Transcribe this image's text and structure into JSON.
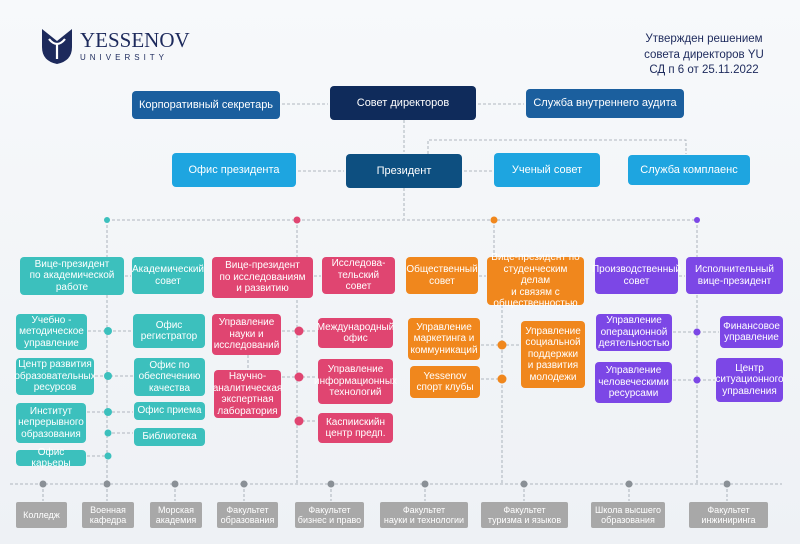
{
  "header": {
    "logo": {
      "name": "YESSENOV",
      "sub": "UNIVERSITY"
    },
    "approval": [
      "Утвержден решением",
      "совета директоров YU",
      "СД п 6 от 25.11.2022"
    ]
  },
  "colors": {
    "teal": "#3cc0bd",
    "pink": "#e04571",
    "orange": "#f08a1d",
    "purple": "#7c47e6",
    "navy": "#0f2b5b",
    "gray": "#a8a8a8"
  },
  "top": {
    "corp_secretary": "Корпоративный секретарь",
    "board": "Совет директоров",
    "audit": "Служба внутреннего аудита",
    "president_office": "Офис президента",
    "president": "Президент",
    "academic_council_main": "Ученый совет",
    "compliance": "Служба комплаенс"
  },
  "academic": {
    "vp": "Вице-президент\nпо академической\nработе",
    "council": "Академический\nсовет",
    "left": [
      "Учебно -\nметодическое\nуправление",
      "Центр развития\nобразовательных\nресурсов",
      "Институт\nнепрерывного\nобразования",
      "Офис карьеры"
    ],
    "right": [
      "Офис\nрегистратор",
      "Офис по\nобеспечению\nкачества",
      "Офис приема",
      "Библиотека"
    ]
  },
  "research": {
    "vp": "Вице-президент\nпо исследованиям\nи развитию",
    "council": "Исследова-\nтельский\nсовет",
    "left": [
      "Управление\nнауки и\nисследований",
      "Научно-\nаналитическая\nэкспертная\nлаборатория"
    ],
    "right": [
      "Международный\nофис",
      "Управление\nинформационных\nтехнологий",
      "Каспиискийн\nцентр предп."
    ]
  },
  "student": {
    "council": "Общественный\nсовет",
    "vp": "Вице-президент по\nстуденческим делам\nи связям с\nобщественностью",
    "left": [
      "Управление\nмаркетинга и\nкоммуникаций",
      "Yessenov\nспорт клубы"
    ],
    "right": [
      "Управление\nсоциальной\nподдержки\nи развития\nмолодежи"
    ]
  },
  "executive": {
    "council": "Производственный\nсовет",
    "vp": "Исполнительный\nвице-президент",
    "left": [
      "Управление\nоперационной\nдеятельностью",
      "Управление\nчеловеческими\nресурсами"
    ],
    "right": [
      "Финансовое\nуправление",
      "Центр\nситуационного\nуправления"
    ]
  },
  "faculties": [
    "Колледж",
    "Военная\nкафедра",
    "Морская\nакадемия",
    "Факультет\nобразования",
    "Факультет\nбизнес и право",
    "Факультет\nнауки и технологии",
    "Факультет\nтуризма и языков",
    "Школа высшего\nобразования",
    "Факультет\nинжиниринга"
  ]
}
